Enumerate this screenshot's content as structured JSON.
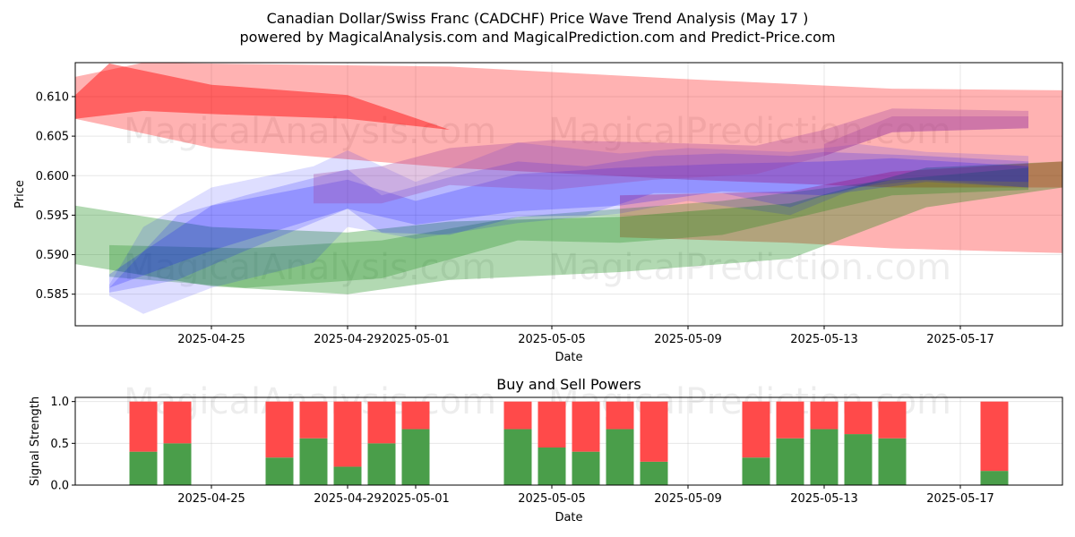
{
  "title_line1": "Canadian Dollar/Swiss Franc (CADCHF) Price Wave Trend Analysis (May 17 )",
  "title_line2": "powered by MagicalAnalysis.com and MagicalPrediction.com and Predict-Price.com",
  "watermarks": [
    "MagicalAnalysis.com",
    "MagicalPrediction.com"
  ],
  "colors": {
    "red": "#ff0000",
    "green": "#008000",
    "blue": "#0000ff",
    "buy": "#4a9e4a",
    "sell": "#ff4a4a"
  },
  "chart_data": [
    {
      "type": "area",
      "title": "",
      "xlabel": "Date",
      "ylabel": "Price",
      "xlim": [
        "2025-04-21",
        "2025-05-20"
      ],
      "ylim": [
        0.581,
        0.6143
      ],
      "x_ticks": [
        "2025-04-25",
        "2025-04-29",
        "2025-05-01",
        "2025-05-05",
        "2025-05-09",
        "2025-05-13",
        "2025-05-17"
      ],
      "y_ticks": [
        0.585,
        0.59,
        0.595,
        0.6,
        0.605,
        0.61
      ],
      "y_tick_labels": [
        "0.585",
        "0.590",
        "0.595",
        "0.600",
        "0.605",
        "0.610"
      ],
      "grid": true,
      "bands": [
        {
          "color": "red",
          "opacity": 0.3,
          "upper": [
            [
              "2025-04-21",
              0.6125
            ],
            [
              "2025-04-23",
              0.6143
            ],
            [
              "2025-05-02",
              0.6138
            ],
            [
              "2025-05-09",
              0.6122
            ],
            [
              "2025-05-15",
              0.611
            ],
            [
              "2025-05-20",
              0.6108
            ]
          ],
          "lower": [
            [
              "2025-04-21",
              0.6072
            ],
            [
              "2025-04-25",
              0.6035
            ],
            [
              "2025-05-02",
              0.601
            ],
            [
              "2025-05-09",
              0.5995
            ],
            [
              "2025-05-15",
              0.5985
            ],
            [
              "2025-05-20",
              0.5985
            ]
          ]
        },
        {
          "color": "red",
          "opacity": 0.45,
          "upper": [
            [
              "2025-04-21",
              0.6102
            ],
            [
              "2025-04-22",
              0.6142
            ],
            [
              "2025-04-25",
              0.6115
            ],
            [
              "2025-04-29",
              0.6102
            ],
            [
              "2025-05-02",
              0.6058
            ]
          ],
          "lower": [
            [
              "2025-04-21",
              0.6072
            ],
            [
              "2025-04-23",
              0.6082
            ],
            [
              "2025-04-25",
              0.6078
            ],
            [
              "2025-04-29",
              0.6072
            ],
            [
              "2025-05-02",
              0.6058
            ]
          ]
        },
        {
          "color": "red",
          "opacity": 0.3,
          "upper": [
            [
              "2025-05-07",
              0.5975
            ],
            [
              "2025-05-12",
              0.598
            ],
            [
              "2025-05-15",
              0.6005
            ],
            [
              "2025-05-20",
              0.6018
            ]
          ],
          "lower": [
            [
              "2025-05-07",
              0.5922
            ],
            [
              "2025-05-12",
              0.5915
            ],
            [
              "2025-05-15",
              0.5908
            ],
            [
              "2025-05-20",
              0.5902
            ]
          ]
        },
        {
          "color": "green",
          "opacity": 0.3,
          "upper": [
            [
              "2025-04-21",
              0.5962
            ],
            [
              "2025-04-25",
              0.5935
            ],
            [
              "2025-04-29",
              0.5928
            ],
            [
              "2025-05-02",
              0.5942
            ],
            [
              "2025-05-07",
              0.5948
            ],
            [
              "2025-05-12",
              0.5965
            ],
            [
              "2025-05-16",
              0.601
            ],
            [
              "2025-05-20",
              0.6018
            ]
          ],
          "lower": [
            [
              "2025-04-21",
              0.5888
            ],
            [
              "2025-04-25",
              0.586
            ],
            [
              "2025-04-29",
              0.585
            ],
            [
              "2025-05-02",
              0.5868
            ],
            [
              "2025-05-07",
              0.5878
            ],
            [
              "2025-05-12",
              0.5895
            ],
            [
              "2025-05-16",
              0.596
            ],
            [
              "2025-05-20",
              0.5985
            ]
          ]
        },
        {
          "color": "green",
          "opacity": 0.25,
          "upper": [
            [
              "2025-04-22",
              0.5912
            ],
            [
              "2025-04-26",
              0.5908
            ],
            [
              "2025-04-30",
              0.5918
            ],
            [
              "2025-05-04",
              0.5948
            ],
            [
              "2025-05-07",
              0.5958
            ],
            [
              "2025-05-10",
              0.5968
            ],
            [
              "2025-05-15",
              0.5995
            ],
            [
              "2025-05-19",
              0.601
            ]
          ],
          "lower": [
            [
              "2025-04-22",
              0.5872
            ],
            [
              "2025-04-26",
              0.5858
            ],
            [
              "2025-04-30",
              0.587
            ],
            [
              "2025-05-04",
              0.5918
            ],
            [
              "2025-05-07",
              0.5915
            ],
            [
              "2025-05-10",
              0.5925
            ],
            [
              "2025-05-15",
              0.5975
            ],
            [
              "2025-05-19",
              0.5982
            ]
          ]
        },
        {
          "color": "blue",
          "opacity": 0.13,
          "upper": [
            [
              "2025-04-22",
              0.5862
            ],
            [
              "2025-04-23",
              0.5935
            ],
            [
              "2025-04-25",
              0.5985
            ],
            [
              "2025-04-28",
              0.6012
            ],
            [
              "2025-04-29",
              0.6032
            ],
            [
              "2025-05-01",
              0.5992
            ],
            [
              "2025-05-04",
              0.6042
            ],
            [
              "2025-05-07",
              0.6028
            ],
            [
              "2025-05-09",
              0.6035
            ],
            [
              "2025-05-12",
              0.603
            ],
            [
              "2025-05-14",
              0.604
            ],
            [
              "2025-05-16",
              0.603
            ],
            [
              "2025-05-19",
              0.6025
            ]
          ],
          "lower": [
            [
              "2025-04-22",
              0.5848
            ],
            [
              "2025-04-23",
              0.5825
            ],
            [
              "2025-04-25",
              0.5858
            ],
            [
              "2025-04-28",
              0.589
            ],
            [
              "2025-04-29",
              0.5935
            ],
            [
              "2025-05-01",
              0.592
            ],
            [
              "2025-05-04",
              0.594
            ],
            [
              "2025-05-07",
              0.5952
            ],
            [
              "2025-05-09",
              0.5968
            ],
            [
              "2025-05-12",
              0.595
            ],
            [
              "2025-05-14",
              0.5985
            ],
            [
              "2025-05-16",
              0.5995
            ],
            [
              "2025-05-19",
              0.5985
            ]
          ]
        },
        {
          "color": "blue",
          "opacity": 0.17,
          "upper": [
            [
              "2025-04-22",
              0.5858
            ],
            [
              "2025-04-24",
              0.595
            ],
            [
              "2025-04-26",
              0.5975
            ],
            [
              "2025-04-29",
              0.6008
            ],
            [
              "2025-04-30",
              0.5975
            ],
            [
              "2025-05-02",
              0.5998
            ],
            [
              "2025-05-04",
              0.6018
            ],
            [
              "2025-05-06",
              0.6012
            ],
            [
              "2025-05-08",
              0.6025
            ],
            [
              "2025-05-10",
              0.6028
            ],
            [
              "2025-05-12",
              0.6025
            ],
            [
              "2025-05-13",
              0.603
            ],
            [
              "2025-05-16",
              0.6025
            ],
            [
              "2025-05-19",
              0.6018
            ]
          ],
          "lower": [
            [
              "2025-04-22",
              0.5852
            ],
            [
              "2025-04-24",
              0.5868
            ],
            [
              "2025-04-26",
              0.5905
            ],
            [
              "2025-04-29",
              0.5958
            ],
            [
              "2025-04-30",
              0.5928
            ],
            [
              "2025-05-02",
              0.5925
            ],
            [
              "2025-05-04",
              0.5948
            ],
            [
              "2025-05-06",
              0.595
            ],
            [
              "2025-05-08",
              0.5978
            ],
            [
              "2025-05-10",
              0.5978
            ],
            [
              "2025-05-12",
              0.596
            ],
            [
              "2025-05-13",
              0.5975
            ],
            [
              "2025-05-16",
              0.5992
            ],
            [
              "2025-05-19",
              0.5985
            ]
          ]
        },
        {
          "color": "blue",
          "opacity": 0.2,
          "upper": [
            [
              "2025-04-22",
              0.5875
            ],
            [
              "2025-04-25",
              0.5962
            ],
            [
              "2025-04-29",
              0.5995
            ],
            [
              "2025-05-01",
              0.5968
            ],
            [
              "2025-05-04",
              0.6002
            ],
            [
              "2025-05-07",
              0.601
            ],
            [
              "2025-05-10",
              0.6015
            ],
            [
              "2025-05-13",
              0.6018
            ],
            [
              "2025-05-15",
              0.6022
            ],
            [
              "2025-05-19",
              0.6012
            ]
          ],
          "lower": [
            [
              "2025-04-22",
              0.5858
            ],
            [
              "2025-04-25",
              0.5905
            ],
            [
              "2025-04-29",
              0.5958
            ],
            [
              "2025-05-01",
              0.5938
            ],
            [
              "2025-05-04",
              0.5955
            ],
            [
              "2025-05-07",
              0.5962
            ],
            [
              "2025-05-10",
              0.598
            ],
            [
              "2025-05-13",
              0.5975
            ],
            [
              "2025-05-15",
              0.5995
            ],
            [
              "2025-05-19",
              0.5992
            ]
          ]
        },
        {
          "color": "purple",
          "opacity": 0.3,
          "upper": [
            [
              "2025-04-28",
              0.6002
            ],
            [
              "2025-04-30",
              0.6012
            ],
            [
              "2025-05-02",
              0.6035
            ],
            [
              "2025-05-05",
              0.6045
            ],
            [
              "2025-05-08",
              0.6042
            ],
            [
              "2025-05-11",
              0.6038
            ],
            [
              "2025-05-13",
              0.6058
            ],
            [
              "2025-05-15",
              0.6085
            ],
            [
              "2025-05-19",
              0.6082
            ]
          ],
          "lower": [
            [
              "2025-04-28",
              0.5965
            ],
            [
              "2025-04-30",
              0.5965
            ],
            [
              "2025-05-02",
              0.5988
            ],
            [
              "2025-05-05",
              0.5982
            ],
            [
              "2025-05-08",
              0.5995
            ],
            [
              "2025-05-11",
              0.6002
            ],
            [
              "2025-05-13",
              0.6025
            ],
            [
              "2025-05-15",
              0.6055
            ],
            [
              "2025-05-19",
              0.606
            ]
          ]
        },
        {
          "color": "purple",
          "opacity": 0.3,
          "upper": [
            [
              "2025-05-13",
              0.604
            ],
            [
              "2025-05-15",
              0.6075
            ],
            [
              "2025-05-19",
              0.6075
            ]
          ],
          "lower": [
            [
              "2025-05-13",
              0.6025
            ],
            [
              "2025-05-15",
              0.6055
            ],
            [
              "2025-05-19",
              0.606
            ]
          ]
        }
      ]
    },
    {
      "type": "bar",
      "title": "Buy and Sell Powers",
      "xlabel": "Date",
      "ylabel": "Signal Strength",
      "ylim": [
        0,
        1.05
      ],
      "y_ticks": [
        0,
        0.5,
        1
      ],
      "y_tick_labels": [
        "0.0",
        "0.5",
        "1.0"
      ],
      "x_ticks": [
        "2025-04-25",
        "2025-04-29",
        "2025-05-01",
        "2025-05-05",
        "2025-05-09",
        "2025-05-13",
        "2025-05-17"
      ],
      "grid": true,
      "dates": [
        "2025-04-23",
        "2025-04-24",
        "2025-04-27",
        "2025-04-28",
        "2025-04-29",
        "2025-04-30",
        "2025-05-01",
        "2025-05-04",
        "2025-05-05",
        "2025-05-06",
        "2025-05-07",
        "2025-05-08",
        "2025-05-11",
        "2025-05-12",
        "2025-05-13",
        "2025-05-14",
        "2025-05-15",
        "2025-05-18"
      ],
      "series": [
        {
          "values": [
            0.4,
            0.5,
            0.33,
            0.56,
            0.22,
            0.5,
            0.67,
            0.67,
            0.45,
            0.4,
            0.67,
            0.28,
            0.33,
            0.56,
            0.67,
            0.61,
            0.56,
            0.17
          ]
        },
        {
          "values": [
            0.6,
            0.5,
            0.67,
            0.44,
            0.78,
            0.5,
            0.33,
            0.33,
            0.55,
            0.6,
            0.33,
            0.72,
            0.67,
            0.44,
            0.33,
            0.39,
            0.44,
            0.83
          ]
        }
      ]
    }
  ]
}
